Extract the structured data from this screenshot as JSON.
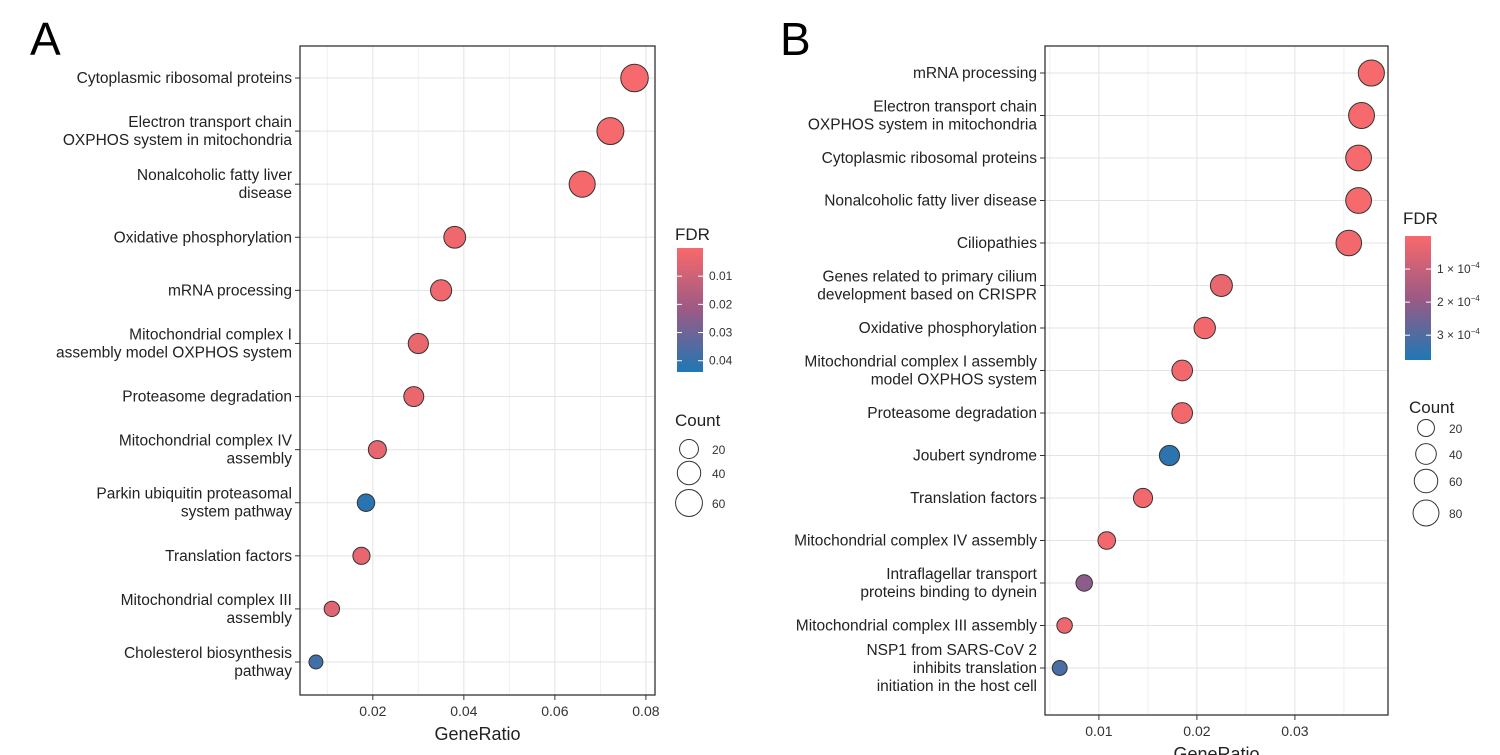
{
  "chart_data": [
    {
      "panel": "A",
      "type": "scatter",
      "xlabel": "GeneRatio",
      "xlim": [
        0.004,
        0.082
      ],
      "xticks": [
        0.02,
        0.04,
        0.06,
        0.08
      ],
      "xtick_labels": [
        "0.02",
        "0.04",
        "0.06",
        "0.08"
      ],
      "points": [
        {
          "label_lines": [
            "Cytoplasmic ribosomal proteins"
          ],
          "x": 0.0775,
          "count": 64,
          "fdr": 0.0005
        },
        {
          "label_lines": [
            "Electron transport chain",
            "OXPHOS system in mitochondria"
          ],
          "x": 0.0722,
          "count": 60,
          "fdr": 0.0005
        },
        {
          "label_lines": [
            "Nonalcoholic fatty liver",
            "disease"
          ],
          "x": 0.066,
          "count": 55,
          "fdr": 0.0008
        },
        {
          "label_lines": [
            "Oxidative phosphorylation"
          ],
          "x": 0.038,
          "count": 32,
          "fdr": 0.002
        },
        {
          "label_lines": [
            "mRNA processing"
          ],
          "x": 0.035,
          "count": 29,
          "fdr": 0.002
        },
        {
          "label_lines": [
            "Mitochondrial complex I",
            "assembly model OXPHOS system"
          ],
          "x": 0.03,
          "count": 25,
          "fdr": 0.003
        },
        {
          "label_lines": [
            "Proteasome degradation"
          ],
          "x": 0.029,
          "count": 24,
          "fdr": 0.003
        },
        {
          "label_lines": [
            "Mitochondrial complex IV",
            "assembly"
          ],
          "x": 0.021,
          "count": 17,
          "fdr": 0.004
        },
        {
          "label_lines": [
            "Parkin ubiquitin proteasomal",
            "system pathway"
          ],
          "x": 0.0185,
          "count": 15,
          "fdr": 0.042
        },
        {
          "label_lines": [
            "Translation factors"
          ],
          "x": 0.0175,
          "count": 14,
          "fdr": 0.004
        },
        {
          "label_lines": [
            "Mitochondrial complex III",
            "assembly"
          ],
          "x": 0.011,
          "count": 9,
          "fdr": 0.006
        },
        {
          "label_lines": [
            "Cholesterol biosynthesis",
            "pathway"
          ],
          "x": 0.0075,
          "count": 6,
          "fdr": 0.038
        }
      ],
      "fdr_legend": {
        "title": "FDR",
        "range": [
          0.0,
          0.044
        ],
        "ticks": [
          0.01,
          0.02,
          0.03,
          0.04
        ],
        "tick_labels": [
          "0.01",
          "0.02",
          "0.03",
          "0.04"
        ],
        "low_color": "#F8696B",
        "high_color": "#1F77B4"
      },
      "count_legend": {
        "title": "Count",
        "values": [
          20,
          40,
          60
        ],
        "labels": [
          "20",
          "40",
          "60"
        ]
      }
    },
    {
      "panel": "B",
      "type": "scatter",
      "xlabel": "GeneRatio",
      "xlim": [
        0.0045,
        0.0395
      ],
      "xticks": [
        0.01,
        0.02,
        0.03
      ],
      "xtick_labels": [
        "0.01",
        "0.02",
        "0.03"
      ],
      "points": [
        {
          "label_lines": [
            "mRNA processing"
          ],
          "x": 0.0378,
          "count": 82,
          "fdr": 5e-06
        },
        {
          "label_lines": [
            "Electron transport chain",
            "OXPHOS system in mitochondria"
          ],
          "x": 0.0368,
          "count": 80,
          "fdr": 5e-06
        },
        {
          "label_lines": [
            "Cytoplasmic ribosomal proteins"
          ],
          "x": 0.0365,
          "count": 79,
          "fdr": 5e-06
        },
        {
          "label_lines": [
            "Nonalcoholic fatty liver disease"
          ],
          "x": 0.0365,
          "count": 79,
          "fdr": 5e-06
        },
        {
          "label_lines": [
            "Ciliopathies"
          ],
          "x": 0.0355,
          "count": 77,
          "fdr": 1e-05
        },
        {
          "label_lines": [
            "Genes related to primary cilium",
            "development based on CRISPR"
          ],
          "x": 0.0225,
          "count": 49,
          "fdr": 3e-05
        },
        {
          "label_lines": [
            "Oxidative phosphorylation"
          ],
          "x": 0.0208,
          "count": 45,
          "fdr": 1e-05
        },
        {
          "label_lines": [
            "Mitochondrial complex I assembly",
            "model OXPHOS system"
          ],
          "x": 0.0185,
          "count": 40,
          "fdr": 1e-05
        },
        {
          "label_lines": [
            "Proteasome degradation"
          ],
          "x": 0.0185,
          "count": 40,
          "fdr": 1e-05
        },
        {
          "label_lines": [
            "Joubert syndrome"
          ],
          "x": 0.0172,
          "count": 37,
          "fdr": 0.000355
        },
        {
          "label_lines": [
            "Translation factors"
          ],
          "x": 0.0145,
          "count": 31,
          "fdr": 1e-05
        },
        {
          "label_lines": [
            "Mitochondrial complex IV assembly"
          ],
          "x": 0.0108,
          "count": 23,
          "fdr": 1e-05
        },
        {
          "label_lines": [
            "Intraflagellar transport",
            "proteins binding to dynein"
          ],
          "x": 0.0085,
          "count": 18,
          "fdr": 0.00021
        },
        {
          "label_lines": [
            "Mitochondrial complex III assembly"
          ],
          "x": 0.0065,
          "count": 14,
          "fdr": 2e-05
        },
        {
          "label_lines": [
            "NSP1 from SARS-CoV 2",
            "inhibits translation",
            "initiation in the host cell"
          ],
          "x": 0.006,
          "count": 12,
          "fdr": 0.00031
        }
      ],
      "fdr_legend": {
        "title": "FDR",
        "range": [
          0.0,
          0.000375
        ],
        "ticks": [
          0.0001,
          0.0002,
          0.0003
        ],
        "tick_labels": [
          "1 × 10",
          "2 × 10",
          "3 × 10"
        ],
        "tick_exponent": "−4",
        "low_color": "#F8696B",
        "high_color": "#1F77B4"
      },
      "count_legend": {
        "title": "Count",
        "values": [
          20,
          40,
          60,
          80
        ],
        "labels": [
          "20",
          "40",
          "60",
          "80"
        ]
      }
    }
  ]
}
